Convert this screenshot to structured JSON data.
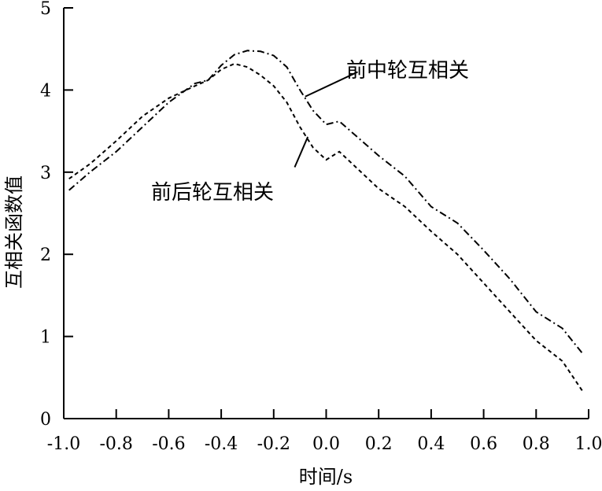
{
  "chart_data": {
    "type": "line",
    "title": "",
    "xlabel": "时间/s",
    "ylabel": "互相关函数值",
    "xlim": [
      -1.0,
      1.0
    ],
    "ylim": [
      0,
      5
    ],
    "x_tick_labels": [
      "-1.0",
      "-0.8",
      "-0.6",
      "-0.4",
      "-0.2",
      "0.0",
      "0.2",
      "0.4",
      "0.6",
      "0.8",
      "1.0"
    ],
    "y_tick_labels": [
      "0",
      "1",
      "2",
      "3",
      "4",
      "5"
    ],
    "grid": false,
    "series": [
      {
        "name": "前中轮互相关",
        "style": "dashdot",
        "color": "#000000",
        "x": [
          -0.98,
          -0.9,
          -0.8,
          -0.7,
          -0.6,
          -0.5,
          -0.45,
          -0.4,
          -0.35,
          -0.3,
          -0.25,
          -0.2,
          -0.15,
          -0.1,
          -0.05,
          0.0,
          0.05,
          0.1,
          0.2,
          0.3,
          0.4,
          0.5,
          0.6,
          0.7,
          0.8,
          0.9,
          0.98
        ],
        "y": [
          2.78,
          3.0,
          3.25,
          3.55,
          3.85,
          4.08,
          4.12,
          4.3,
          4.43,
          4.48,
          4.47,
          4.42,
          4.28,
          4.0,
          3.75,
          3.58,
          3.62,
          3.48,
          3.2,
          2.95,
          2.58,
          2.38,
          2.05,
          1.7,
          1.3,
          1.1,
          0.78
        ]
      },
      {
        "name": "前后轮互相关",
        "style": "dashed",
        "color": "#000000",
        "x": [
          -0.98,
          -0.9,
          -0.8,
          -0.7,
          -0.6,
          -0.5,
          -0.45,
          -0.4,
          -0.35,
          -0.3,
          -0.25,
          -0.2,
          -0.15,
          -0.1,
          -0.05,
          0.0,
          0.05,
          0.1,
          0.2,
          0.3,
          0.4,
          0.5,
          0.6,
          0.7,
          0.8,
          0.9,
          0.98
        ],
        "y": [
          2.92,
          3.1,
          3.38,
          3.68,
          3.9,
          4.05,
          4.12,
          4.25,
          4.32,
          4.28,
          4.18,
          4.05,
          3.85,
          3.55,
          3.3,
          3.15,
          3.25,
          3.1,
          2.8,
          2.58,
          2.28,
          2.0,
          1.65,
          1.3,
          0.95,
          0.7,
          0.32
        ]
      }
    ],
    "annotations": [
      {
        "text": "前中轮互相关",
        "series": 0
      },
      {
        "text": "前后轮互相关",
        "series": 1
      }
    ]
  }
}
